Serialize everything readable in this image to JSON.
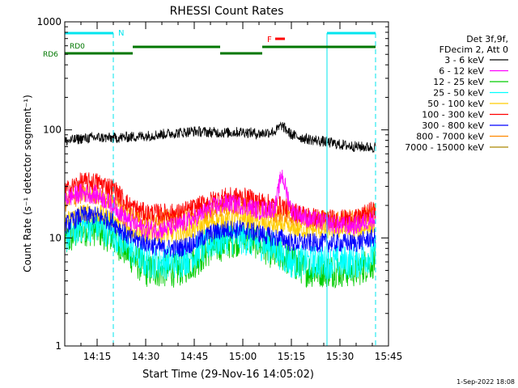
{
  "chart_data": {
    "type": "line",
    "title": "RHESSI Count Rates",
    "xlabel": "Start Time (29-Nov-16 14:05:02)",
    "ylabel": "Count Rate (s⁻¹ detector segment⁻¹)",
    "yscale": "log",
    "ylim": [
      1,
      1000
    ],
    "xlim": [
      "14:05",
      "15:45"
    ],
    "x_ticks": [
      "14:15",
      "14:30",
      "14:45",
      "15:00",
      "15:15",
      "15:30",
      "15:45"
    ],
    "y_ticks": [
      "1",
      "10",
      "100",
      "1000"
    ],
    "legend_header": [
      "Det 3f,9f,",
      "FDecim 2, Att 0"
    ],
    "legend_position": "right",
    "footer_date": "1-Sep-2022 18:08",
    "x_time": [
      "14:05",
      "14:10",
      "14:15",
      "14:20",
      "14:25",
      "14:30",
      "14:35",
      "14:40",
      "14:45",
      "14:50",
      "14:55",
      "15:00",
      "15:05",
      "15:10",
      "15:12",
      "15:15",
      "15:20",
      "15:25",
      "15:30",
      "15:35",
      "15:40"
    ],
    "series": [
      {
        "name": "3 - 6 keV",
        "color": "#000000",
        "values": [
          78,
          83,
          85,
          84,
          86,
          88,
          91,
          94,
          97,
          95,
          94,
          96,
          92,
          97,
          110,
          90,
          82,
          78,
          73,
          70,
          69
        ]
      },
      {
        "name": "6 - 12 keV",
        "color": "#ff00ff",
        "values": [
          23,
          26,
          25,
          20,
          14,
          12,
          12,
          13,
          15,
          19,
          21,
          20,
          18,
          19,
          40,
          18,
          15,
          14,
          13,
          13,
          15
        ]
      },
      {
        "name": "12 - 25 keV",
        "color": "#00cc00",
        "values": [
          9,
          12,
          12,
          10,
          7,
          5,
          5,
          5,
          6,
          8,
          9,
          10,
          9,
          7,
          7,
          6,
          5,
          5,
          5,
          5,
          6
        ]
      },
      {
        "name": "25 - 50 keV",
        "color": "#00ffff",
        "values": [
          10,
          13,
          13,
          11,
          8,
          6,
          6,
          6,
          7,
          9,
          10,
          10,
          9,
          8,
          7,
          6,
          6,
          6,
          6,
          6,
          7
        ]
      },
      {
        "name": "50 - 100 keV",
        "color": "#ffcc00",
        "values": [
          14,
          17,
          17,
          15,
          12,
          11,
          11,
          11,
          12,
          14,
          15,
          15,
          14,
          13,
          13,
          12,
          12,
          12,
          12,
          12,
          13
        ]
      },
      {
        "name": "100 - 300 keV",
        "color": "#ff0000",
        "values": [
          27,
          33,
          33,
          29,
          20,
          17,
          17,
          17,
          19,
          22,
          24,
          24,
          22,
          20,
          20,
          18,
          16,
          15,
          15,
          15,
          18
        ]
      },
      {
        "name": "300 - 800 keV",
        "color": "#0000ff",
        "values": [
          13,
          16,
          16,
          14,
          10,
          9,
          8,
          8,
          9,
          11,
          12,
          12,
          11,
          10,
          10,
          9,
          9,
          9,
          9,
          9,
          10
        ]
      },
      {
        "name": "800 - 7000 keV",
        "color": "#ff8800",
        "values": [
          21,
          25,
          25,
          22,
          17,
          15,
          15,
          15,
          16,
          18,
          20,
          20,
          19,
          17,
          17,
          16,
          15,
          15,
          15,
          15,
          17
        ]
      },
      {
        "name": "7000 - 15000 keV",
        "color": "#aa8800",
        "values": []
      }
    ],
    "annotations": {
      "night": {
        "label": "N",
        "color": "#00e5ee",
        "intervals": [
          [
            "14:05",
            "14:20"
          ],
          [
            "15:26",
            "15:41"
          ]
        ]
      },
      "attenuator": {
        "label": "RD6",
        "color": "#007700",
        "intervals": [
          [
            "14:05",
            "14:26"
          ],
          [
            "14:26",
            "14:53"
          ],
          [
            "14:53",
            "15:06"
          ],
          [
            "15:06",
            "15:41"
          ]
        ]
      },
      "decimation_label": {
        "label": "RD0",
        "color": "#007700"
      },
      "flare": {
        "label": "F",
        "color": "#ff0000",
        "intervals": [
          [
            "15:10",
            "15:13"
          ]
        ]
      }
    }
  }
}
